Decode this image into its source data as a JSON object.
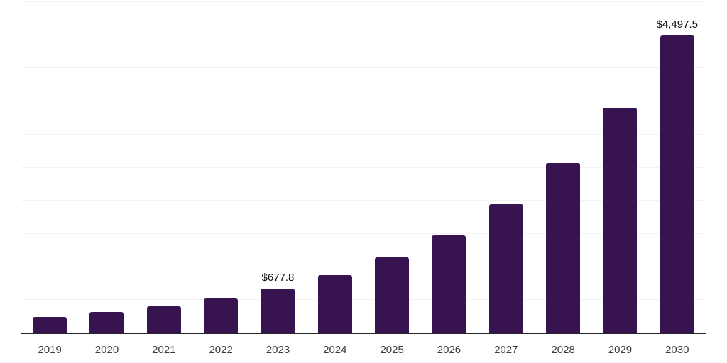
{
  "chart_data": {
    "type": "bar",
    "title": "",
    "xlabel": "",
    "ylabel": "",
    "categories": [
      "2019",
      "2020",
      "2021",
      "2022",
      "2023",
      "2024",
      "2025",
      "2026",
      "2027",
      "2028",
      "2029",
      "2030"
    ],
    "values": [
      245,
      320,
      405,
      525,
      677.8,
      880,
      1150,
      1480,
      1950,
      2575,
      3410,
      4497.5
    ],
    "data_labels": [
      "",
      "",
      "",
      "",
      "$677.8",
      "",
      "",
      "",
      "",
      "",
      "",
      "$4,497.5"
    ],
    "ylim": [
      0,
      5000
    ],
    "gridline_step": 500,
    "grid": true,
    "legend": false,
    "bar_color": "#371450",
    "gridline_color": "#f3f3f3",
    "axis_line_color": "#262626",
    "tick_label_color": "#3c3c3c",
    "data_label_color": "#0d0d0d",
    "background_color": "#ffffff"
  }
}
